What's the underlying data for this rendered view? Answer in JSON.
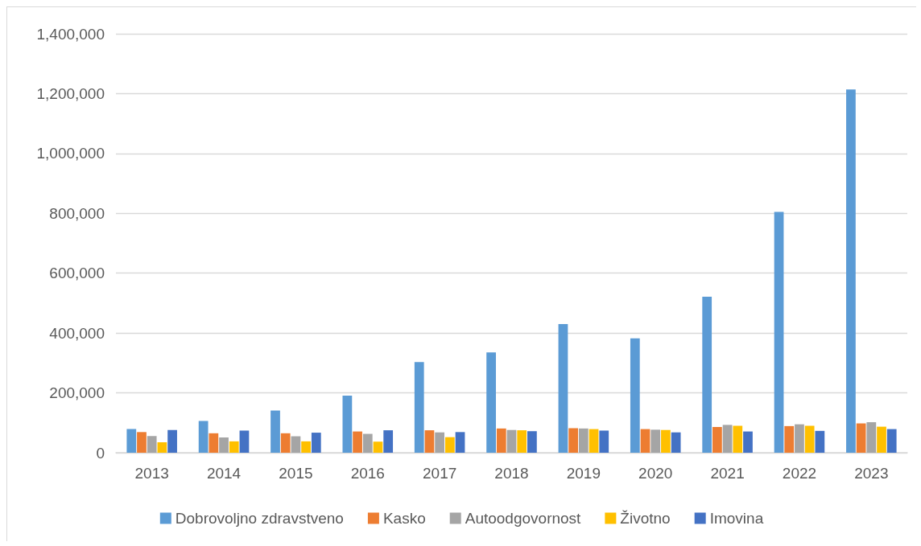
{
  "chart_data": {
    "type": "bar",
    "categories": [
      "2013",
      "2014",
      "2015",
      "2016",
      "2017",
      "2018",
      "2019",
      "2020",
      "2021",
      "2022",
      "2023"
    ],
    "series": [
      {
        "name": "Dobrovoljno zdravstveno",
        "color": "#5b9bd5",
        "values": [
          79000,
          106000,
          141000,
          191000,
          303000,
          335000,
          430000,
          382000,
          521000,
          805000,
          1214000
        ]
      },
      {
        "name": "Kasko",
        "color": "#ed7d31",
        "values": [
          69000,
          65000,
          65000,
          71000,
          75000,
          81000,
          82000,
          79000,
          86000,
          89000,
          98000
        ]
      },
      {
        "name": "Autoodgovornost",
        "color": "#a5a5a5",
        "values": [
          56000,
          51000,
          55000,
          63000,
          68000,
          76000,
          81000,
          77000,
          93000,
          95000,
          102000
        ]
      },
      {
        "name": "Životno",
        "color": "#ffc000",
        "values": [
          35000,
          38000,
          38000,
          37000,
          52000,
          75000,
          79000,
          76000,
          90000,
          90000,
          87000
        ]
      },
      {
        "name": "Imovina",
        "color": "#4472c4",
        "values": [
          76000,
          74000,
          67000,
          75000,
          69000,
          72000,
          74000,
          68000,
          71000,
          73000,
          79000
        ]
      }
    ],
    "ylim": [
      0,
      1400000
    ],
    "yticks": [
      {
        "value": 0,
        "label": "0"
      },
      {
        "value": 200000,
        "label": "200,000"
      },
      {
        "value": 400000,
        "label": "400,000"
      },
      {
        "value": 600000,
        "label": "600,000"
      },
      {
        "value": 800000,
        "label": "800,000"
      },
      {
        "value": 1000000,
        "label": "1,000,000"
      },
      {
        "value": 1200000,
        "label": "1,200,000"
      },
      {
        "value": 1400000,
        "label": "1,400,000"
      }
    ],
    "grid": "y",
    "legend": "bottom"
  }
}
